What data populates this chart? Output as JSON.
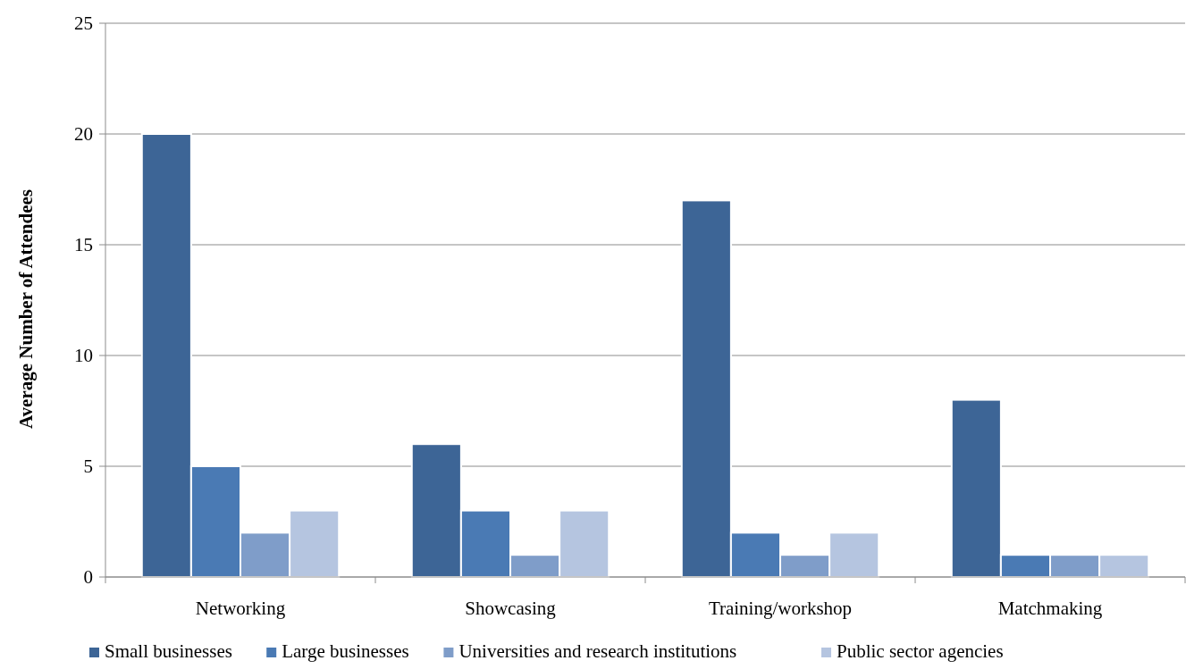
{
  "chart_data": {
    "type": "bar",
    "ylabel": "Average Number of Attendees",
    "categories": [
      "Networking",
      "Showcasing",
      "Training/workshop",
      "Matchmaking"
    ],
    "series": [
      {
        "name": "Small businesses",
        "color": "#3d6596",
        "values": [
          20,
          6,
          17,
          8
        ]
      },
      {
        "name": "Large businesses",
        "color": "#4a7ab4",
        "values": [
          5,
          3,
          2,
          1
        ]
      },
      {
        "name": "Universities and research institutions",
        "color": "#7f9dc9",
        "values": [
          2,
          1,
          1,
          1
        ]
      },
      {
        "name": "Public sector agencies",
        "color": "#b5c5e0",
        "values": [
          3,
          3,
          2,
          1
        ]
      }
    ],
    "ylim": [
      0,
      25
    ],
    "yticks": [
      0,
      5,
      10,
      15,
      20,
      25
    ],
    "grid": "y",
    "legend": "bottom"
  }
}
